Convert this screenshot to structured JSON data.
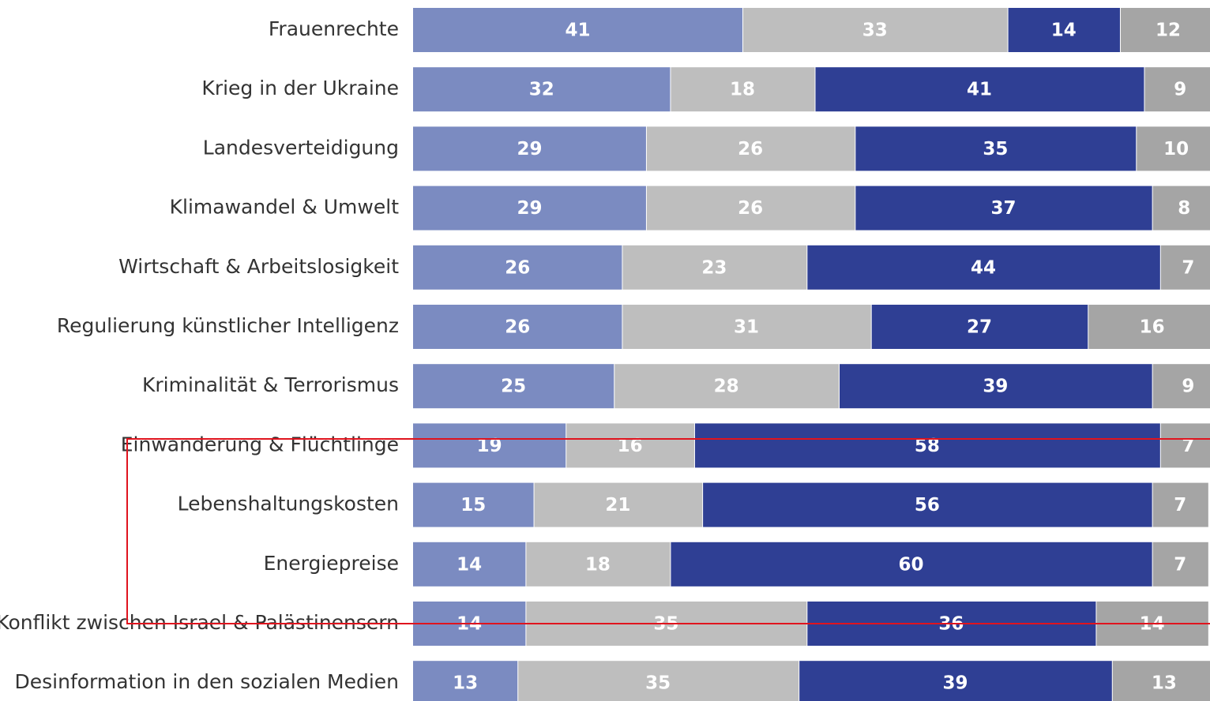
{
  "chart_data": {
    "type": "bar",
    "orientation": "horizontal",
    "stacked": true,
    "categories": [
      "Frauenrechte",
      "Krieg in der Ukraine",
      "Landesverteidigung",
      "Klimawandel & Umwelt",
      "Wirtschaft & Arbeitslosigkeit",
      "Regulierung künstlicher Intelligenz",
      "Kriminalität & Terrorismus",
      "Einwanderung & Flüchtlinge",
      "Lebenshaltungskosten",
      "Energiepreise",
      "Konflikt zwischen Israel & Palästinensern",
      "Desinformation in den sozialen Medien"
    ],
    "series": [
      {
        "color": "#7b8bc1",
        "values": [
          41,
          32,
          29,
          29,
          26,
          26,
          25,
          19,
          15,
          14,
          14,
          13
        ]
      },
      {
        "color": "#bebebe",
        "values": [
          33,
          18,
          26,
          26,
          23,
          31,
          28,
          16,
          21,
          18,
          35,
          35
        ]
      },
      {
        "color": "#2f3f94",
        "values": [
          14,
          41,
          35,
          37,
          44,
          27,
          39,
          58,
          56,
          60,
          36,
          39
        ]
      },
      {
        "color": "#a5a5a5",
        "values": [
          12,
          9,
          10,
          8,
          7,
          16,
          9,
          7,
          7,
          7,
          14,
          13
        ]
      }
    ],
    "xlim": [
      0,
      100
    ]
  }
}
